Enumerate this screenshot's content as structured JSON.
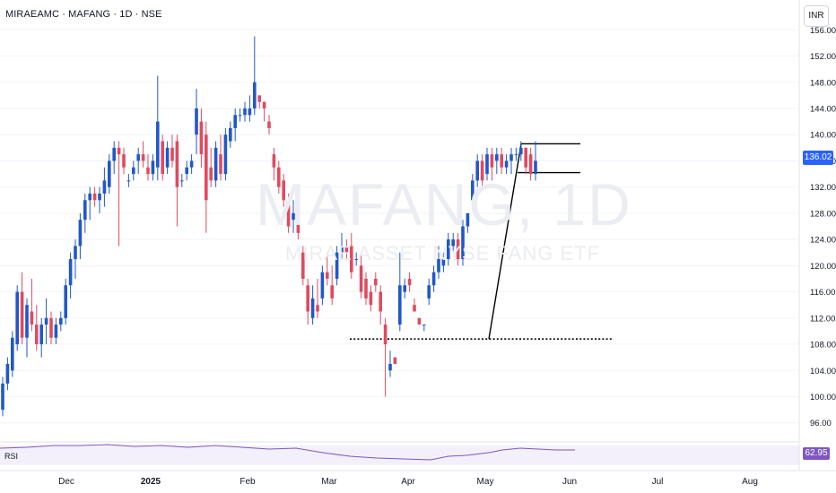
{
  "header": {
    "title": "MIRAEAMC · MAFANG · 1D · NSE"
  },
  "currency_button": {
    "label": "INR"
  },
  "watermark": {
    "symbol": "MAFANG, 1D",
    "name": "MIRAE ASSET NYSE FANG ETF"
  },
  "price_badge": {
    "value": "136.02",
    "color": "#2962ff"
  },
  "rsi": {
    "label": "RSI",
    "value": "62.95",
    "color": "#7e57c2"
  },
  "colors": {
    "up": "#2157c9",
    "down": "#e04a5f",
    "grid": "#f0f3fa",
    "line": "#000000"
  },
  "chart_data": {
    "type": "candlestick",
    "y_axis": {
      "ticks": [
        96,
        100,
        104,
        108,
        112,
        116,
        120,
        124,
        128,
        132,
        136,
        140,
        144,
        148,
        152,
        156
      ],
      "tick_labels": [
        "96.00",
        "100.00",
        "104.00",
        "108.00",
        "112.00",
        "116.00",
        "120.00",
        "124.00",
        "128.00",
        "132.00",
        "136.00",
        "140.00",
        "144.00",
        "148.00",
        "152.00",
        "156.00"
      ],
      "range": [
        93.5,
        157
      ]
    },
    "x_axis": {
      "labels": [
        "Dec",
        "2025",
        "Feb",
        "Mar",
        "Apr",
        "May",
        "Jun",
        "Jul",
        "Aug"
      ]
    },
    "last_close": 136.02,
    "annotations": {
      "support_line": {
        "price": 108.8,
        "style": "dotted"
      },
      "flagpole": {
        "from": 108.8,
        "to": 138.6
      },
      "flag_upper": 138.6,
      "flag_lower": 134.2
    },
    "rsi_value": 62.95,
    "candles": [
      {
        "o": 98,
        "h": 103,
        "l": 97,
        "c": 102
      },
      {
        "o": 102,
        "h": 106,
        "l": 101,
        "c": 105
      },
      {
        "o": 104,
        "h": 110,
        "l": 103,
        "c": 109
      },
      {
        "o": 108,
        "h": 117,
        "l": 107,
        "c": 116
      },
      {
        "o": 116,
        "h": 119,
        "l": 108,
        "c": 109
      },
      {
        "o": 109,
        "h": 115,
        "l": 106,
        "c": 114
      },
      {
        "o": 113,
        "h": 118,
        "l": 110,
        "c": 111
      },
      {
        "o": 111,
        "h": 114,
        "l": 107,
        "c": 108
      },
      {
        "o": 108,
        "h": 112,
        "l": 106,
        "c": 111
      },
      {
        "o": 111,
        "h": 115,
        "l": 108,
        "c": 112
      },
      {
        "o": 112,
        "h": 113,
        "l": 108,
        "c": 109
      },
      {
        "o": 109,
        "h": 112,
        "l": 108,
        "c": 111
      },
      {
        "o": 111,
        "h": 113,
        "l": 110,
        "c": 112
      },
      {
        "o": 112,
        "h": 118,
        "l": 111,
        "c": 117
      },
      {
        "o": 117,
        "h": 122,
        "l": 115,
        "c": 121
      },
      {
        "o": 121,
        "h": 124,
        "l": 118,
        "c": 123
      },
      {
        "o": 123,
        "h": 128,
        "l": 121,
        "c": 127
      },
      {
        "o": 127,
        "h": 131,
        "l": 125,
        "c": 130
      },
      {
        "o": 130,
        "h": 132,
        "l": 127,
        "c": 131
      },
      {
        "o": 131,
        "h": 132,
        "l": 129,
        "c": 130
      },
      {
        "o": 130,
        "h": 132,
        "l": 128,
        "c": 131
      },
      {
        "o": 131,
        "h": 135,
        "l": 129,
        "c": 133
      },
      {
        "o": 132,
        "h": 137,
        "l": 131,
        "c": 136
      },
      {
        "o": 136,
        "h": 139,
        "l": 134,
        "c": 138
      },
      {
        "o": 138,
        "h": 139,
        "l": 123,
        "c": 137
      },
      {
        "o": 137,
        "h": 138,
        "l": 134,
        "c": 135
      },
      {
        "o": 133,
        "h": 134,
        "l": 132,
        "c": 133
      },
      {
        "o": 134,
        "h": 136,
        "l": 133,
        "c": 135
      },
      {
        "o": 136,
        "h": 138,
        "l": 134,
        "c": 137
      },
      {
        "o": 137,
        "h": 139,
        "l": 135,
        "c": 136
      },
      {
        "o": 135,
        "h": 137,
        "l": 133,
        "c": 134
      },
      {
        "o": 134,
        "h": 137,
        "l": 133,
        "c": 136
      },
      {
        "o": 135,
        "h": 149,
        "l": 133,
        "c": 142
      },
      {
        "o": 139,
        "h": 140,
        "l": 133,
        "c": 134
      },
      {
        "o": 135,
        "h": 139,
        "l": 134,
        "c": 138
      },
      {
        "o": 138,
        "h": 140,
        "l": 135,
        "c": 136
      },
      {
        "o": 139,
        "h": 140,
        "l": 126,
        "c": 132
      },
      {
        "o": 133,
        "h": 134,
        "l": 132,
        "c": 133
      },
      {
        "o": 134,
        "h": 136,
        "l": 133,
        "c": 135
      },
      {
        "o": 135,
        "h": 137,
        "l": 134,
        "c": 136
      },
      {
        "o": 140,
        "h": 147,
        "l": 137,
        "c": 144
      },
      {
        "o": 142,
        "h": 144,
        "l": 135,
        "c": 137
      },
      {
        "o": 140,
        "h": 142,
        "l": 125,
        "c": 130
      },
      {
        "o": 135,
        "h": 138,
        "l": 132,
        "c": 133
      },
      {
        "o": 133,
        "h": 139,
        "l": 132,
        "c": 138
      },
      {
        "o": 137,
        "h": 140,
        "l": 133,
        "c": 134
      },
      {
        "o": 134,
        "h": 141,
        "l": 133,
        "c": 140
      },
      {
        "o": 139,
        "h": 142,
        "l": 138,
        "c": 141
      },
      {
        "o": 141,
        "h": 144,
        "l": 139,
        "c": 143
      },
      {
        "o": 143,
        "h": 144,
        "l": 142,
        "c": 143
      },
      {
        "o": 143,
        "h": 145,
        "l": 142,
        "c": 144
      },
      {
        "o": 143,
        "h": 146,
        "l": 142,
        "c": 144
      },
      {
        "o": 144,
        "h": 155,
        "l": 143,
        "c": 148
      },
      {
        "o": 146,
        "h": 146,
        "l": 144,
        "c": 145
      },
      {
        "o": 145,
        "h": 145,
        "l": 142,
        "c": 144
      },
      {
        "o": 142,
        "h": 143,
        "l": 140,
        "c": 141
      },
      {
        "o": 137,
        "h": 138,
        "l": 133,
        "c": 135
      },
      {
        "o": 135,
        "h": 136,
        "l": 131,
        "c": 132
      },
      {
        "o": 133,
        "h": 134,
        "l": 129,
        "c": 130
      },
      {
        "o": 130,
        "h": 131,
        "l": 125,
        "c": 126
      },
      {
        "o": 127,
        "h": 130,
        "l": 125,
        "c": 128
      },
      {
        "o": 128,
        "h": 129,
        "l": 124,
        "c": 125
      },
      {
        "o": 122,
        "h": 123,
        "l": 117,
        "c": 118
      },
      {
        "o": 117,
        "h": 118,
        "l": 111,
        "c": 113
      },
      {
        "o": 112,
        "h": 117,
        "l": 111,
        "c": 115
      },
      {
        "o": 114,
        "h": 118,
        "l": 112,
        "c": 113
      },
      {
        "o": 115,
        "h": 120,
        "l": 114,
        "c": 119
      },
      {
        "o": 119,
        "h": 122,
        "l": 117,
        "c": 118
      },
      {
        "o": 117,
        "h": 120,
        "l": 114,
        "c": 115
      },
      {
        "o": 118,
        "h": 123,
        "l": 117,
        "c": 122
      },
      {
        "o": 122,
        "h": 125,
        "l": 121,
        "c": 123
      },
      {
        "o": 123,
        "h": 124,
        "l": 121,
        "c": 122
      },
      {
        "o": 123,
        "h": 125,
        "l": 118,
        "c": 119
      },
      {
        "o": 121,
        "h": 122,
        "l": 120,
        "c": 121
      },
      {
        "o": 120,
        "h": 122,
        "l": 115,
        "c": 116
      },
      {
        "o": 118,
        "h": 119,
        "l": 114,
        "c": 115
      },
      {
        "o": 116,
        "h": 117,
        "l": 113,
        "c": 114
      },
      {
        "o": 118,
        "h": 119,
        "l": 116,
        "c": 117
      },
      {
        "o": 116,
        "h": 117,
        "l": 111,
        "c": 113
      },
      {
        "o": 111,
        "h": 112,
        "l": 100,
        "c": 108
      },
      {
        "o": 104,
        "h": 107,
        "l": 103,
        "c": 105
      },
      {
        "o": 106,
        "h": 106,
        "l": 105,
        "c": 105
      },
      {
        "o": 111,
        "h": 122,
        "l": 110,
        "c": 117
      },
      {
        "o": 116,
        "h": 118,
        "l": 115,
        "c": 117
      },
      {
        "o": 118,
        "h": 119,
        "l": 116,
        "c": 117
      },
      {
        "o": 114,
        "h": 115,
        "l": 113,
        "c": 113
      },
      {
        "o": 112,
        "h": 112,
        "l": 111,
        "c": 111
      },
      {
        "o": 111,
        "h": 111,
        "l": 110,
        "c": 111
      },
      {
        "o": 115,
        "h": 118,
        "l": 114,
        "c": 117
      },
      {
        "o": 117,
        "h": 120,
        "l": 116,
        "c": 119
      },
      {
        "o": 119,
        "h": 123,
        "l": 118,
        "c": 121
      },
      {
        "o": 120,
        "h": 122,
        "l": 119,
        "c": 121
      },
      {
        "o": 121,
        "h": 125,
        "l": 120,
        "c": 124
      },
      {
        "o": 123,
        "h": 125,
        "l": 122,
        "c": 124
      },
      {
        "o": 124,
        "h": 125,
        "l": 120,
        "c": 121
      },
      {
        "o": 121,
        "h": 127,
        "l": 120,
        "c": 126
      },
      {
        "o": 126,
        "h": 128,
        "l": 125,
        "c": 128
      },
      {
        "o": 130,
        "h": 134,
        "l": 129,
        "c": 133
      },
      {
        "o": 133,
        "h": 137,
        "l": 132,
        "c": 136
      },
      {
        "o": 136,
        "h": 137,
        "l": 132,
        "c": 133
      },
      {
        "o": 134,
        "h": 138,
        "l": 133,
        "c": 137
      },
      {
        "o": 137,
        "h": 138,
        "l": 133,
        "c": 135
      },
      {
        "o": 136,
        "h": 138,
        "l": 134,
        "c": 137
      },
      {
        "o": 137,
        "h": 138,
        "l": 134,
        "c": 135
      },
      {
        "o": 135,
        "h": 137,
        "l": 134,
        "c": 136
      },
      {
        "o": 136,
        "h": 138,
        "l": 134,
        "c": 137
      },
      {
        "o": 137,
        "h": 138,
        "l": 136,
        "c": 137
      },
      {
        "o": 137,
        "h": 139,
        "l": 136,
        "c": 138
      },
      {
        "o": 138,
        "h": 138,
        "l": 134,
        "c": 135
      },
      {
        "o": 137,
        "h": 138,
        "l": 133,
        "c": 134
      },
      {
        "o": 134,
        "h": 139,
        "l": 133,
        "c": 136
      }
    ]
  }
}
